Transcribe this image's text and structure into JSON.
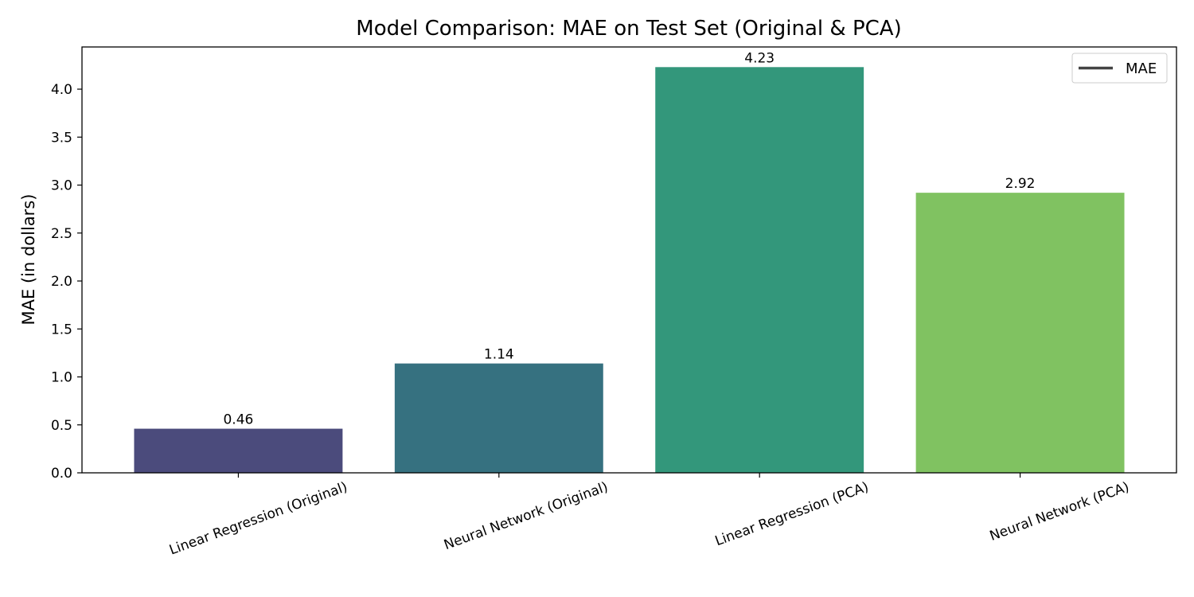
{
  "chart_data": {
    "type": "bar",
    "title": "Model Comparison: MAE on Test Set (Original & PCA)",
    "xlabel": "",
    "ylabel": "MAE (in dollars)",
    "categories": [
      "Linear Regression (Original)",
      "Neural Network (Original)",
      "Linear Regression (PCA)",
      "Neural Network (PCA)"
    ],
    "values": [
      0.46,
      1.14,
      4.23,
      2.92
    ],
    "value_labels": [
      "0.46",
      "1.14",
      "4.23",
      "2.92"
    ],
    "colors": [
      "#4b4b7c",
      "#367180",
      "#33977b",
      "#80c261"
    ],
    "ylim": [
      0,
      4.44
    ],
    "yticks": [
      0.0,
      0.5,
      1.0,
      1.5,
      2.0,
      2.5,
      3.0,
      3.5,
      4.0
    ],
    "ytick_labels": [
      "0.0",
      "0.5",
      "1.0",
      "1.5",
      "2.0",
      "2.5",
      "3.0",
      "3.5",
      "4.0"
    ],
    "grid": false,
    "legend": {
      "position": "top-right",
      "entries": [
        {
          "label": "MAE",
          "color": "#444444",
          "marker": "line"
        }
      ]
    }
  }
}
